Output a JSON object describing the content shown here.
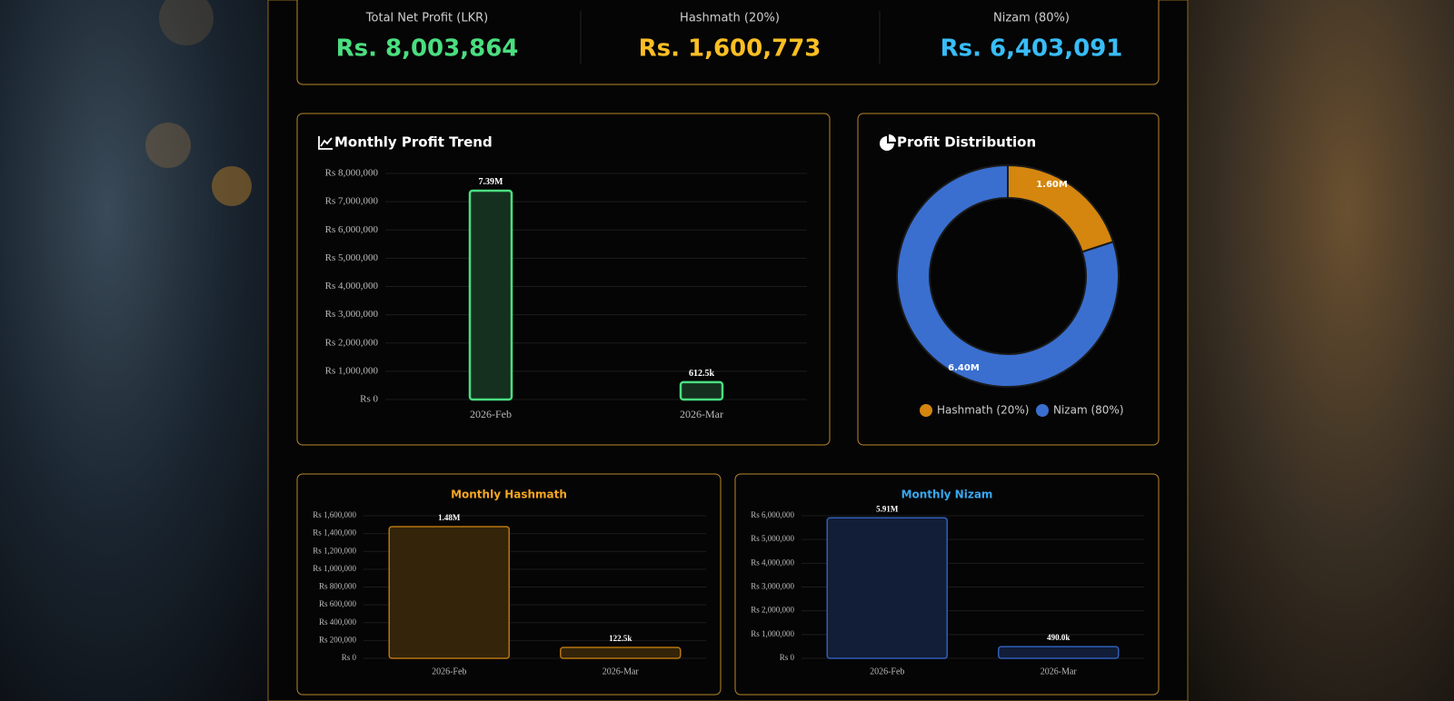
{
  "stats": [
    {
      "label": "Total Net Profit (LKR)",
      "value": "Rs. 8,003,864"
    },
    {
      "label": "Hashmath (20%)",
      "value": "Rs. 1,600,773"
    },
    {
      "label": "Nizam (80%)",
      "value": "Rs. 6,403,091"
    }
  ],
  "chart_data": [
    {
      "type": "bar",
      "title": "Monthly Profit Trend",
      "categories": [
        "2026-Feb",
        "2026-Mar"
      ],
      "values": [
        7391364,
        612500
      ],
      "value_labels": [
        "7.39M",
        "612.5k"
      ],
      "color": "#4ade80",
      "fill": "#15301f",
      "ylim": [
        0,
        8000000
      ],
      "yticks": [
        {
          "value": 0,
          "label": "Rs 0"
        },
        {
          "value": 1000000,
          "label": "Rs 1,000,000"
        },
        {
          "value": 2000000,
          "label": "Rs 2,000,000"
        },
        {
          "value": 3000000,
          "label": "Rs 3,000,000"
        },
        {
          "value": 4000000,
          "label": "Rs 4,000,000"
        },
        {
          "value": 5000000,
          "label": "Rs 5,000,000"
        },
        {
          "value": 6000000,
          "label": "Rs 6,000,000"
        },
        {
          "value": 7000000,
          "label": "Rs 7,000,000"
        },
        {
          "value": 8000000,
          "label": "Rs 8,000,000"
        }
      ],
      "grid": true
    },
    {
      "type": "pie",
      "title": "Profit Distribution",
      "categories": [
        "Hashmath (20%)",
        "Nizam (80%)"
      ],
      "values": [
        1600773,
        6403091
      ],
      "value_labels": [
        "1.60M",
        "6.40M"
      ],
      "colors": [
        "#d4860f",
        "#3a6fd0"
      ]
    },
    {
      "type": "bar",
      "title": "Monthly Hashmath",
      "categories": [
        "2026-Feb",
        "2026-Mar"
      ],
      "values": [
        1478273,
        122500
      ],
      "value_labels": [
        "1.48M",
        "122.5k"
      ],
      "color": "#b8750f",
      "fill": "#33240a",
      "ylim": [
        0,
        1600000
      ],
      "yticks": [
        {
          "value": 0,
          "label": "Rs 0"
        },
        {
          "value": 200000,
          "label": "Rs 200,000"
        },
        {
          "value": 400000,
          "label": "Rs 400,000"
        },
        {
          "value": 600000,
          "label": "Rs 600,000"
        },
        {
          "value": 800000,
          "label": "Rs 800,000"
        },
        {
          "value": 1000000,
          "label": "Rs 1,000,000"
        },
        {
          "value": 1200000,
          "label": "Rs 1,200,000"
        },
        {
          "value": 1400000,
          "label": "Rs 1,400,000"
        },
        {
          "value": 1600000,
          "label": "Rs 1,600,000"
        }
      ],
      "grid": true
    },
    {
      "type": "bar",
      "title": "Monthly Nizam",
      "categories": [
        "2026-Feb",
        "2026-Mar"
      ],
      "values": [
        5913091,
        490000
      ],
      "value_labels": [
        "5.91M",
        "490.0k"
      ],
      "color": "#2f5fb8",
      "fill": "#121d38",
      "ylim": [
        0,
        6000000
      ],
      "yticks": [
        {
          "value": 0,
          "label": "Rs 0"
        },
        {
          "value": 1000000,
          "label": "Rs 1,000,000"
        },
        {
          "value": 2000000,
          "label": "Rs 2,000,000"
        },
        {
          "value": 3000000,
          "label": "Rs 3,000,000"
        },
        {
          "value": 4000000,
          "label": "Rs 4,000,000"
        },
        {
          "value": 5000000,
          "label": "Rs 5,000,000"
        },
        {
          "value": 6000000,
          "label": "Rs 6,000,000"
        }
      ],
      "grid": true
    }
  ]
}
